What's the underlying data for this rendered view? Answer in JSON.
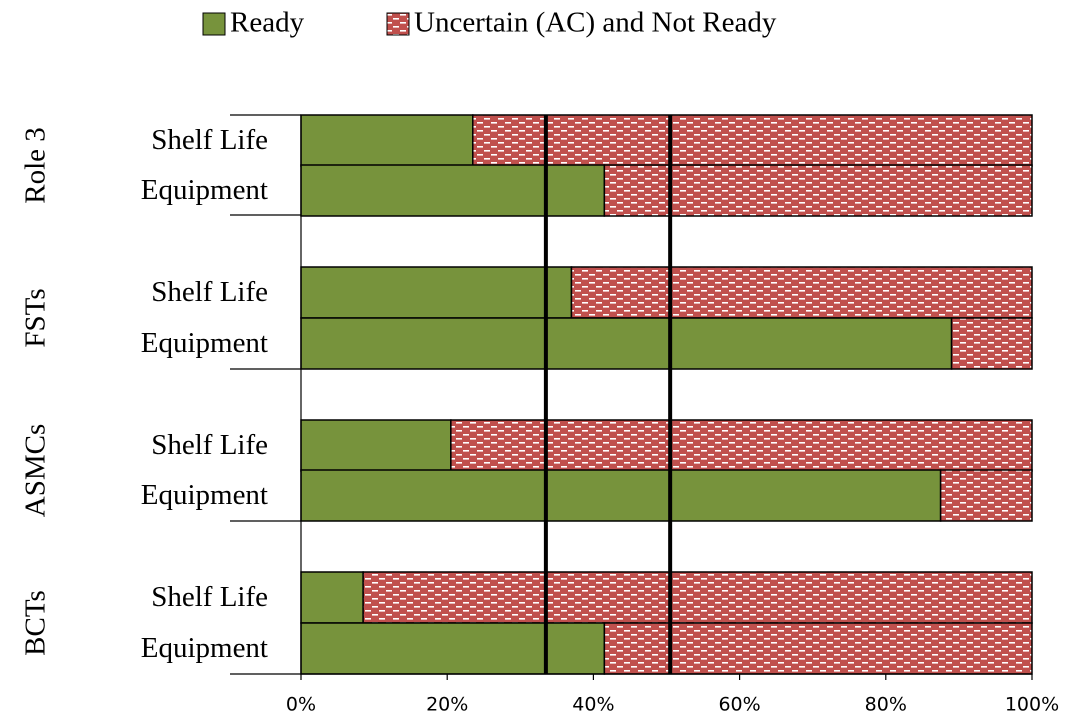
{
  "chart_data": {
    "type": "stacked_barh",
    "groups": [
      "Role 3",
      "FSTs",
      "ASMCs",
      "BCTs"
    ],
    "categories": [
      "Shelf Life",
      "Equipment",
      "Shelf Life",
      "Equipment",
      "Shelf Life",
      "Equipment",
      "Shelf Life",
      "Equipment"
    ],
    "series": [
      {
        "name": "Ready",
        "color": "#77933c",
        "values": [
          23.5,
          41.5,
          37,
          89,
          20.5,
          87.5,
          8.5,
          41.5
        ]
      },
      {
        "name": "Uncertain (AC) and Not Ready",
        "color": "#c0504d",
        "values": [
          76.5,
          58.5,
          63,
          11,
          79.5,
          12.5,
          91.5,
          58.5
        ]
      }
    ],
    "reference_lines": [
      33.5,
      50.5
    ],
    "xlim": [
      0,
      100
    ],
    "xticks": [
      {
        "value": 0,
        "label": "0%"
      },
      {
        "value": 20,
        "label": "20%"
      },
      {
        "value": 40,
        "label": "40%"
      },
      {
        "value": 60,
        "label": "60%"
      },
      {
        "value": 80,
        "label": "80%"
      },
      {
        "value": 100,
        "label": "100%"
      }
    ],
    "legend": "top"
  }
}
